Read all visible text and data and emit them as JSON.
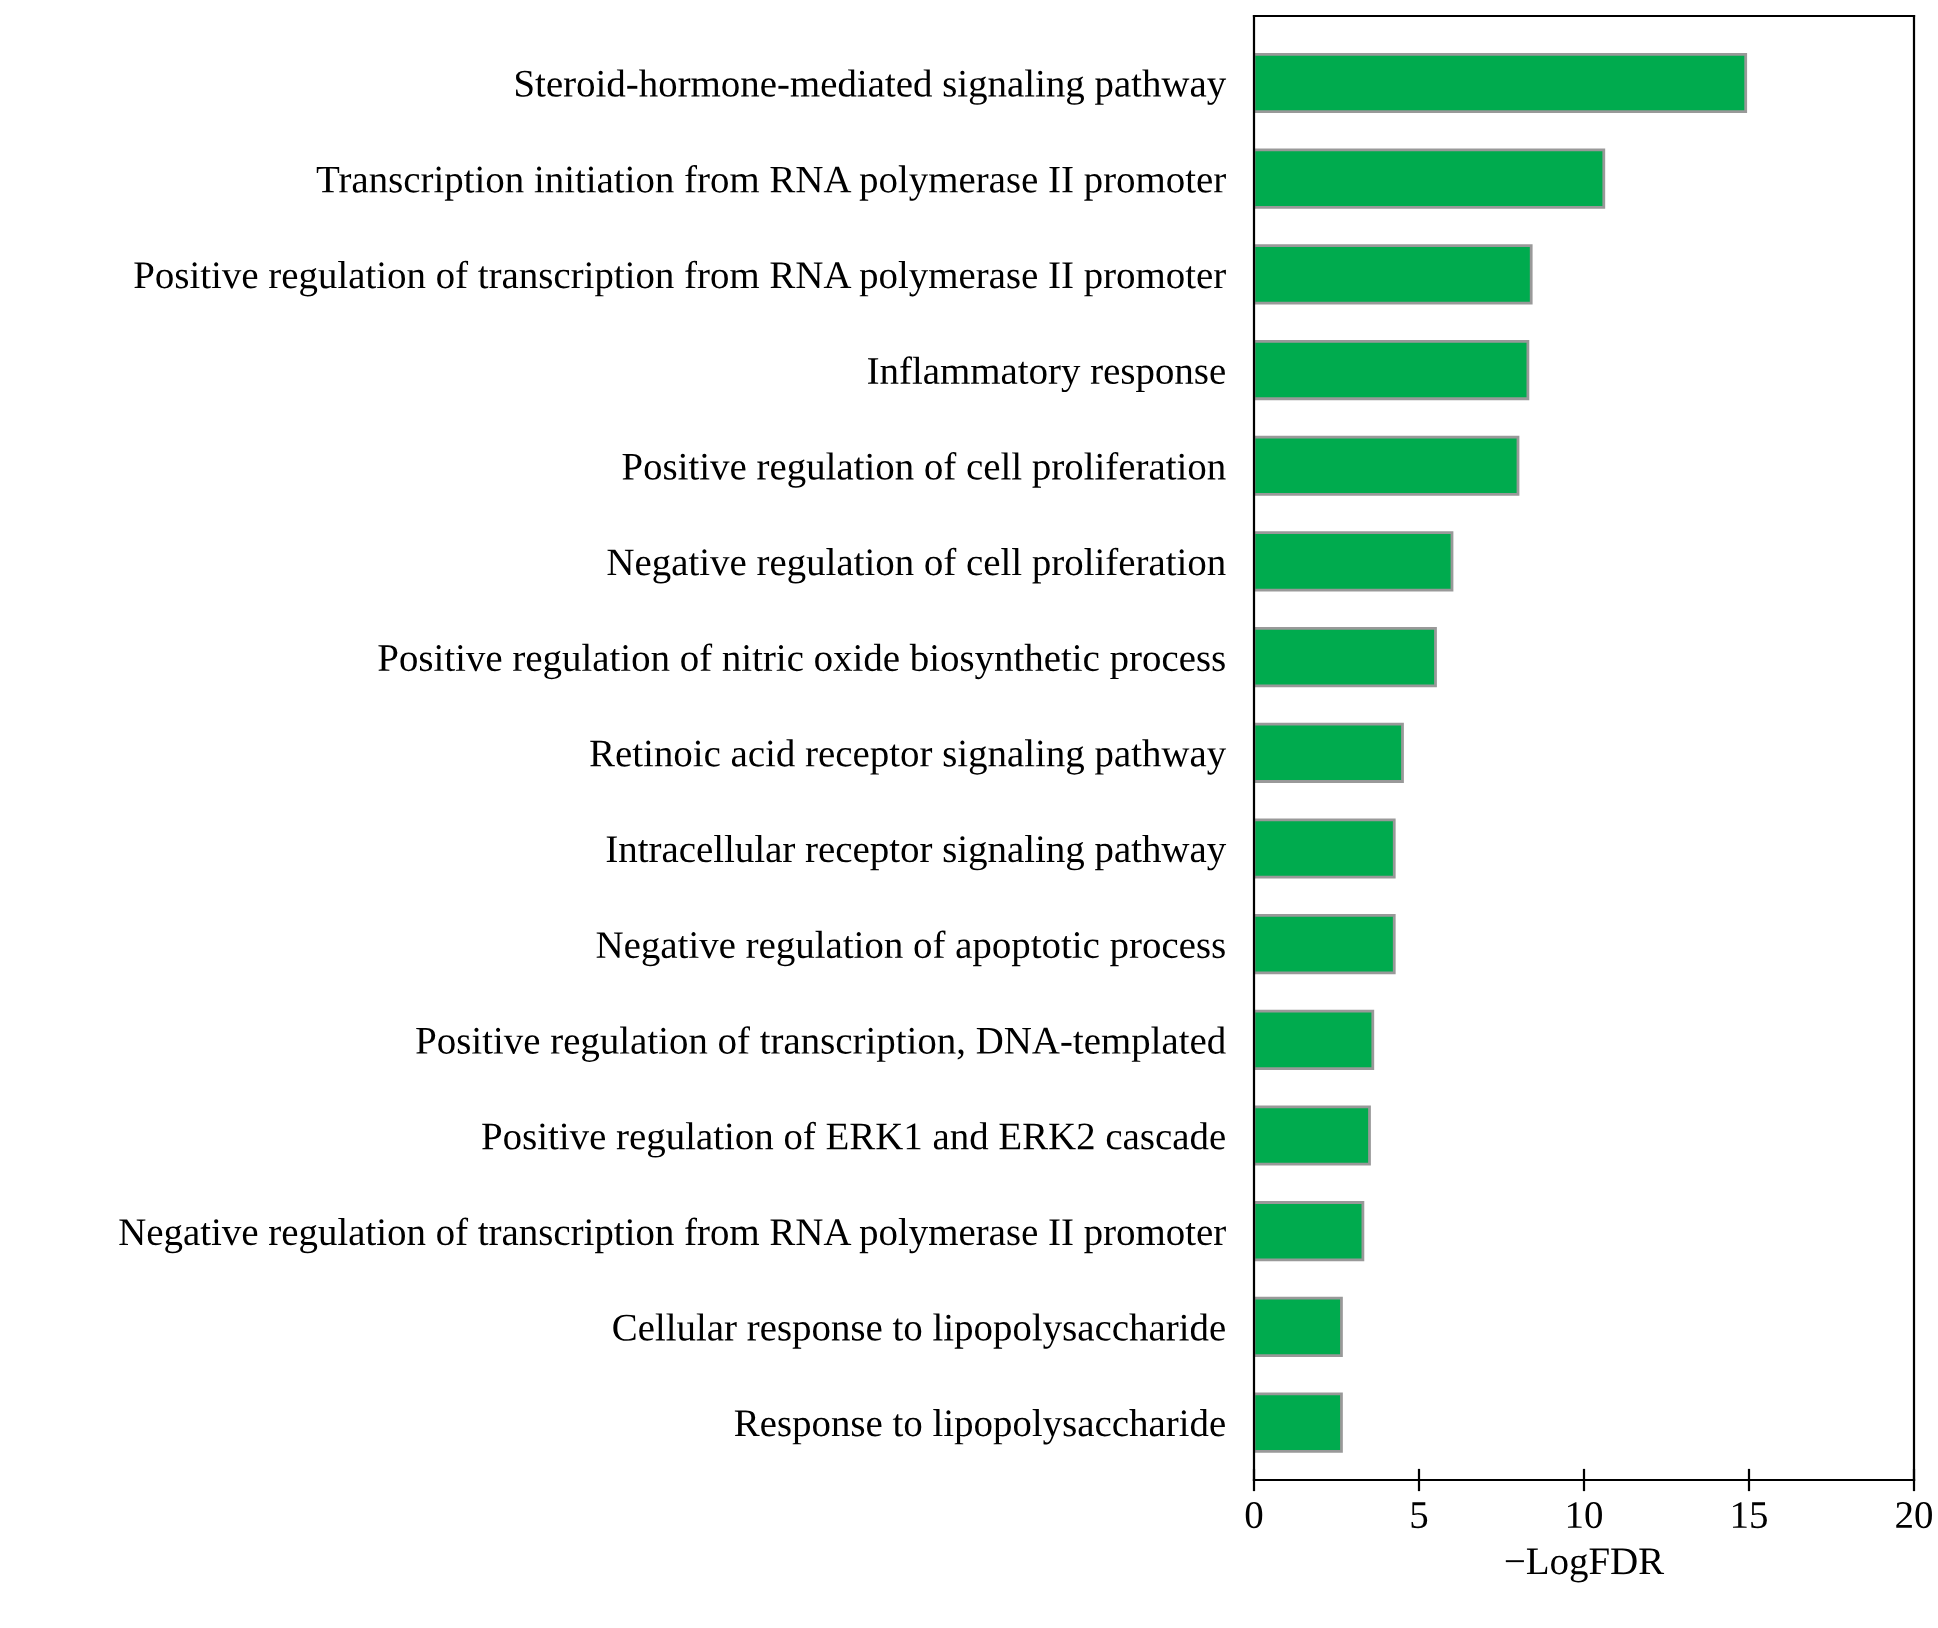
{
  "chart_data": {
    "type": "bar",
    "orientation": "horizontal",
    "xlabel": "−LogFDR",
    "categories": [
      "Steroid-hormone-mediated signaling pathway",
      "Transcription initiation from RNA polymerase II promoter",
      "Positive regulation of transcription from RNA polymerase II promoter",
      "Inflammatory response",
      "Positive regulation of cell proliferation",
      "Negative regulation of cell proliferation",
      "Positive regulation of nitric oxide biosynthetic process",
      "Retinoic acid receptor signaling pathway",
      "Intracellular receptor signaling pathway",
      "Negative regulation of apoptotic process",
      "Positive regulation of transcription, DNA-templated",
      "Positive regulation of ERK1 and ERK2 cascade",
      "Negative regulation of transcription from RNA polymerase II promoter",
      "Cellular response to lipopolysaccharide",
      "Response to lipopolysaccharide"
    ],
    "values": [
      14.9,
      10.6,
      8.4,
      8.3,
      8.0,
      6.0,
      5.5,
      4.5,
      4.25,
      4.25,
      3.6,
      3.5,
      3.3,
      2.65,
      2.65
    ],
    "color": "#00ab4e",
    "xlim": [
      0,
      20
    ],
    "xticks": [
      0,
      5,
      10,
      15,
      20
    ],
    "grid": false
  }
}
